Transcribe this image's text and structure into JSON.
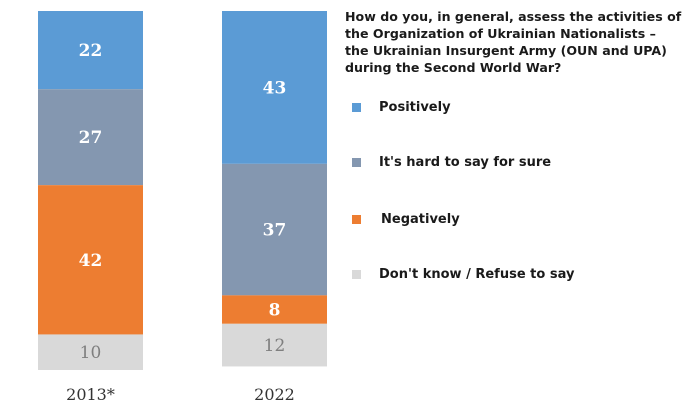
{
  "chart_data": {
    "type": "bar",
    "stacked": true,
    "orientation": "vertical",
    "title": "How do you, in general, assess the activities of the Organization of Ukrainian Nationalists – the Ukrainian Insurgent Army (OUN and UPA) during the Second World War?",
    "categories": [
      "2013*",
      "2022"
    ],
    "series": [
      {
        "name": "Positively",
        "values": [
          22,
          43
        ],
        "color": "#5b9bd5",
        "label_color": "#ffffff"
      },
      {
        "name": "It's hard to say for sure",
        "values": [
          27,
          37
        ],
        "color": "#8497b0",
        "label_color": "#ffffff"
      },
      {
        "name": "Negatively",
        "values": [
          42,
          8
        ],
        "color": "#ed7d31",
        "label_color": "#ffffff"
      },
      {
        "name": "Don't know / Refuse to say",
        "values": [
          10,
          12
        ],
        "color": "#d9d9d9",
        "label_color": "#7f7f7f"
      }
    ],
    "ylim": [
      0,
      101
    ],
    "legend_position": "right",
    "grid": false
  },
  "question_lines": [
    "How do you, in general, assess the activities of",
    "the Organization of Ukrainian Nationalists –",
    "the Ukrainian Insurgent Army (OUN and UPA)",
    "during the Second World War?"
  ]
}
